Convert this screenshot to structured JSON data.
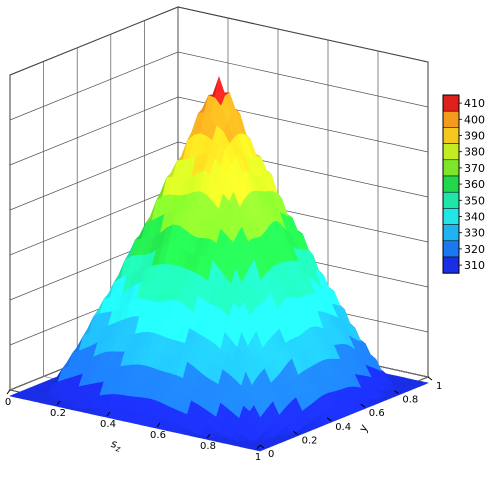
{
  "chart_data": {
    "type": "surface3d",
    "title": "",
    "xlabel": "s",
    "xlabel_sub": "z",
    "ylabel": "y",
    "x_ticks": [
      "0",
      "0.2",
      "0.4",
      "0.6",
      "0.8",
      "1"
    ],
    "y_ticks": [
      "0",
      "0.2",
      "0.4",
      "0.6",
      "0.8",
      "1"
    ],
    "xlim": [
      0,
      1
    ],
    "ylim": [
      0,
      1
    ],
    "zlim": [
      310,
      415
    ],
    "peak": {
      "x": 0.5,
      "y": 0.5,
      "z": 412
    },
    "base_value": 308,
    "grid": true,
    "colormap": {
      "levels": [
        310,
        320,
        330,
        340,
        350,
        360,
        370,
        380,
        390,
        400,
        410
      ],
      "labels": [
        "410",
        "400",
        "390",
        "380",
        "370",
        "360",
        "350",
        "340",
        "330",
        "320",
        "310"
      ],
      "colors": [
        "#1a2ee6",
        "#1c78f0",
        "#1fb3f2",
        "#22e6e6",
        "#1fe6a8",
        "#22d84a",
        "#7ee62a",
        "#c4ec22",
        "#f4c81f",
        "#f49a1c",
        "#e0201c"
      ]
    },
    "legend_position": "right"
  }
}
